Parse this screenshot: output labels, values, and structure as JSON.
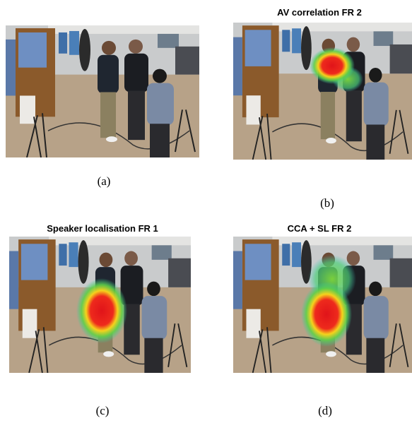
{
  "panels": [
    {
      "caption": "(a)"
    },
    {
      "title": "AV correlation FR 2",
      "caption": "(b)"
    },
    {
      "title": "Speaker localisation FR 1",
      "caption": "(c)"
    },
    {
      "title": "CCA + SL FR 2",
      "caption": "(d)"
    }
  ]
}
